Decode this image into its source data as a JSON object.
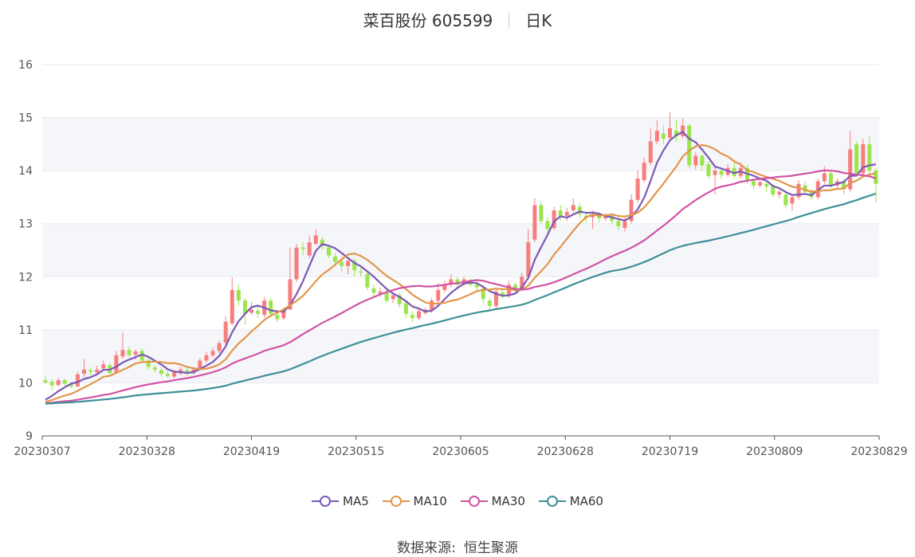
{
  "header": {
    "name_code": "菜百股份 605599",
    "period": "日K"
  },
  "source": {
    "label": "数据来源:",
    "provider": "恒生聚源"
  },
  "colors": {
    "up": "#f87e7e",
    "down": "#9be44c",
    "ma5": "#7b59b5",
    "ma10": "#e3954a",
    "ma30": "#d054a3",
    "ma60": "#3e8f97",
    "grid": "#e8eaf0",
    "band": "#f5f6fa"
  },
  "chart_data": {
    "type": "candlestick",
    "y_ticks": [
      "16",
      "15",
      "14",
      "13",
      "12",
      "11",
      "10",
      "9"
    ],
    "x_ticks": [
      "20230307",
      "20230328",
      "20230419",
      "20230515",
      "20230605",
      "20230628",
      "20230719",
      "20230809",
      "20230829"
    ],
    "ylim": [
      9,
      16
    ],
    "legend": [
      {
        "name": "MA5",
        "color": "#7b59b5"
      },
      {
        "name": "MA10",
        "color": "#e3954a"
      },
      {
        "name": "MA30",
        "color": "#d054a3"
      },
      {
        "name": "MA60",
        "color": "#3e8f97"
      }
    ],
    "candles": [
      [
        10.05,
        10.01,
        10.12,
        9.97
      ],
      [
        10.02,
        9.95,
        10.07,
        9.85
      ],
      [
        9.96,
        10.05,
        10.09,
        9.93
      ],
      [
        10.05,
        9.98,
        10.08,
        9.95
      ],
      [
        9.97,
        9.93,
        10.02,
        9.9
      ],
      [
        9.93,
        10.16,
        10.21,
        9.92
      ],
      [
        10.17,
        10.25,
        10.45,
        10.12
      ],
      [
        10.24,
        10.21,
        10.3,
        10.14
      ],
      [
        10.2,
        10.25,
        10.32,
        10.16
      ],
      [
        10.27,
        10.35,
        10.42,
        10.22
      ],
      [
        10.33,
        10.18,
        10.38,
        10.13
      ],
      [
        10.19,
        10.52,
        10.6,
        10.17
      ],
      [
        10.5,
        10.62,
        10.95,
        10.45
      ],
      [
        10.62,
        10.52,
        10.68,
        10.48
      ],
      [
        10.53,
        10.59,
        10.63,
        10.44
      ],
      [
        10.6,
        10.42,
        10.65,
        10.38
      ],
      [
        10.42,
        10.3,
        10.47,
        10.25
      ],
      [
        10.29,
        10.25,
        10.33,
        10.19
      ],
      [
        10.24,
        10.17,
        10.28,
        10.12
      ],
      [
        10.17,
        10.13,
        10.22,
        10.09
      ],
      [
        10.12,
        10.2,
        10.24,
        10.08
      ],
      [
        10.18,
        10.25,
        10.3,
        10.14
      ],
      [
        10.24,
        10.18,
        10.29,
        10.13
      ],
      [
        10.18,
        10.25,
        10.3,
        10.15
      ],
      [
        10.26,
        10.42,
        10.47,
        10.22
      ],
      [
        10.42,
        10.52,
        10.58,
        10.38
      ],
      [
        10.52,
        10.6,
        10.67,
        10.47
      ],
      [
        10.6,
        10.75,
        10.8,
        10.55
      ],
      [
        10.76,
        11.15,
        11.25,
        10.72
      ],
      [
        11.12,
        11.75,
        11.98,
        11.08
      ],
      [
        11.75,
        11.55,
        11.85,
        11.45
      ],
      [
        11.55,
        11.3,
        11.6,
        11.1
      ],
      [
        11.32,
        11.38,
        11.52,
        11.28
      ],
      [
        11.36,
        11.3,
        11.45,
        11.22
      ],
      [
        11.28,
        11.55,
        11.62,
        11.22
      ],
      [
        11.55,
        11.3,
        11.6,
        11.25
      ],
      [
        11.28,
        11.2,
        11.38,
        11.15
      ],
      [
        11.22,
        11.35,
        11.42,
        11.18
      ],
      [
        11.38,
        11.95,
        12.55,
        11.9
      ],
      [
        11.95,
        12.55,
        12.62,
        11.9
      ],
      [
        12.55,
        12.52,
        12.65,
        12.4
      ],
      [
        12.4,
        12.65,
        12.78,
        12.35
      ],
      [
        12.62,
        12.78,
        12.9,
        12.6
      ],
      [
        12.7,
        12.58,
        12.75,
        12.5
      ],
      [
        12.55,
        12.4,
        12.6,
        12.35
      ],
      [
        12.38,
        12.28,
        12.45,
        12.2
      ],
      [
        12.28,
        12.2,
        12.38,
        12.1
      ],
      [
        12.2,
        12.3,
        12.35,
        12.05
      ],
      [
        12.3,
        12.12,
        12.35,
        12.0
      ],
      [
        12.1,
        12.08,
        12.18,
        12.0
      ],
      [
        12.05,
        11.8,
        12.1,
        11.75
      ],
      [
        11.78,
        11.7,
        11.85,
        11.62
      ],
      [
        11.68,
        11.72,
        11.8,
        11.62
      ],
      [
        11.7,
        11.55,
        11.75,
        11.5
      ],
      [
        11.58,
        11.65,
        11.7,
        11.5
      ],
      [
        11.65,
        11.48,
        11.7,
        11.42
      ],
      [
        11.5,
        11.3,
        11.55,
        11.22
      ],
      [
        11.28,
        11.22,
        11.35,
        11.15
      ],
      [
        11.22,
        11.35,
        11.4,
        11.18
      ],
      [
        11.32,
        11.38,
        11.42,
        11.28
      ],
      [
        11.38,
        11.55,
        11.6,
        11.32
      ],
      [
        11.55,
        11.75,
        11.88,
        11.5
      ],
      [
        11.75,
        11.85,
        11.92,
        11.7
      ],
      [
        11.85,
        11.95,
        12.05,
        11.8
      ],
      [
        11.95,
        11.85,
        12.0,
        11.8
      ],
      [
        11.88,
        11.95,
        12.0,
        11.82
      ],
      [
        11.92,
        11.85,
        11.97,
        11.8
      ],
      [
        11.85,
        11.8,
        11.92,
        11.72
      ],
      [
        11.78,
        11.58,
        11.85,
        11.5
      ],
      [
        11.55,
        11.45,
        11.6,
        11.38
      ],
      [
        11.45,
        11.72,
        11.8,
        11.4
      ],
      [
        11.7,
        11.65,
        11.78,
        11.58
      ],
      [
        11.65,
        11.85,
        11.92,
        11.6
      ],
      [
        11.85,
        11.75,
        11.9,
        11.68
      ],
      [
        11.78,
        12.0,
        12.08,
        11.72
      ],
      [
        12.0,
        12.65,
        12.9,
        11.95
      ],
      [
        12.7,
        13.35,
        13.48,
        12.65
      ],
      [
        13.35,
        13.05,
        13.42,
        12.98
      ],
      [
        13.05,
        12.9,
        13.12,
        12.82
      ],
      [
        12.92,
        13.25,
        13.32,
        12.88
      ],
      [
        13.25,
        13.15,
        13.35,
        13.05
      ],
      [
        13.15,
        13.22,
        13.3,
        13.05
      ],
      [
        13.25,
        13.35,
        13.48,
        13.2
      ],
      [
        13.32,
        13.18,
        13.38,
        13.1
      ],
      [
        13.15,
        13.12,
        13.22,
        13.02
      ],
      [
        13.12,
        13.18,
        13.25,
        12.9
      ],
      [
        13.18,
        13.1,
        13.22,
        13.02
      ],
      [
        13.1,
        13.15,
        13.2,
        13.05
      ],
      [
        13.15,
        13.05,
        13.2,
        12.98
      ],
      [
        13.05,
        12.95,
        13.12,
        12.88
      ],
      [
        12.92,
        13.05,
        13.12,
        12.85
      ],
      [
        13.05,
        13.45,
        13.55,
        13.0
      ],
      [
        13.45,
        13.85,
        14.0,
        13.4
      ],
      [
        13.82,
        14.15,
        14.25,
        13.78
      ],
      [
        14.15,
        14.55,
        14.8,
        14.1
      ],
      [
        14.55,
        14.75,
        14.95,
        14.5
      ],
      [
        14.7,
        14.6,
        14.85,
        14.5
      ],
      [
        14.62,
        14.8,
        15.1,
        14.55
      ],
      [
        14.75,
        14.65,
        14.95,
        14.55
      ],
      [
        14.65,
        14.85,
        14.98,
        14.6
      ],
      [
        14.85,
        14.1,
        14.88,
        14.05
      ],
      [
        14.1,
        14.28,
        14.35,
        14.02
      ],
      [
        14.28,
        14.1,
        14.32,
        14.0
      ],
      [
        14.12,
        13.9,
        14.18,
        13.85
      ],
      [
        13.92,
        14.0,
        14.05,
        13.55
      ],
      [
        14.0,
        13.92,
        14.05,
        13.85
      ],
      [
        13.92,
        14.05,
        14.12,
        13.88
      ],
      [
        14.05,
        13.9,
        14.18,
        13.85
      ],
      [
        13.9,
        14.05,
        14.15,
        13.85
      ],
      [
        14.05,
        13.8,
        14.1,
        13.75
      ],
      [
        13.8,
        13.72,
        13.85,
        13.65
      ],
      [
        13.72,
        13.78,
        13.85,
        13.68
      ],
      [
        13.75,
        13.7,
        13.78,
        13.6
      ],
      [
        13.7,
        13.55,
        13.75,
        13.5
      ],
      [
        13.55,
        13.6,
        13.65,
        13.48
      ],
      [
        13.55,
        13.35,
        13.62,
        13.3
      ],
      [
        13.38,
        13.5,
        13.55,
        13.25
      ],
      [
        13.5,
        13.75,
        13.82,
        13.45
      ],
      [
        13.72,
        13.6,
        13.8,
        13.55
      ],
      [
        13.6,
        13.5,
        13.65,
        13.45
      ],
      [
        13.5,
        13.8,
        13.85,
        13.45
      ],
      [
        13.8,
        13.95,
        14.08,
        13.75
      ],
      [
        13.95,
        13.72,
        14.0,
        13.68
      ],
      [
        13.72,
        13.8,
        13.85,
        13.65
      ],
      [
        13.8,
        13.65,
        13.85,
        13.55
      ],
      [
        13.65,
        14.4,
        14.75,
        13.6
      ],
      [
        14.5,
        13.95,
        14.55,
        13.9
      ],
      [
        13.95,
        14.5,
        14.6,
        13.92
      ],
      [
        14.5,
        14.0,
        14.65,
        13.95
      ],
      [
        14.0,
        13.75,
        14.05,
        13.4
      ]
    ]
  }
}
